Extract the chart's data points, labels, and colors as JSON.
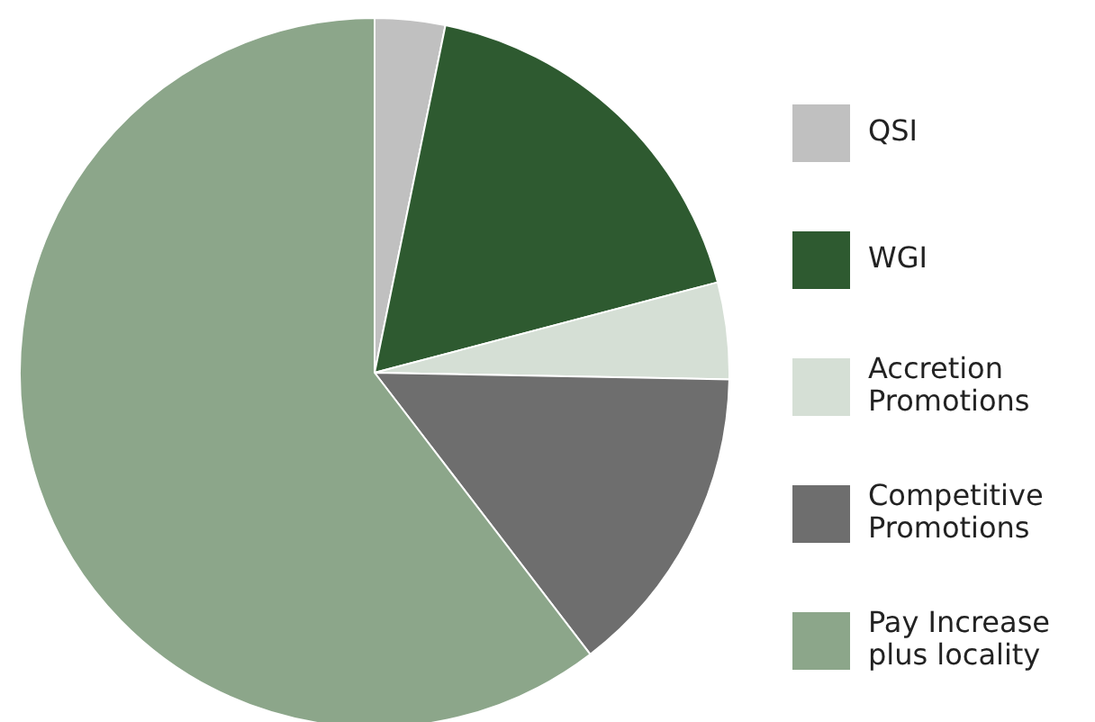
{
  "chart_data": {
    "type": "pie",
    "categories": [
      "QSI",
      "WGI",
      "Accretion Promotions",
      "Competitive Promotions",
      "Pay Increase plus locality"
    ],
    "values": [
      3.2,
      17.7,
      4.4,
      14.3,
      60.4
    ],
    "colors": [
      "#c0c0c0",
      "#2e5a30",
      "#d5dfd5",
      "#6e6e6e",
      "#8ca68a"
    ],
    "legend": "right"
  }
}
